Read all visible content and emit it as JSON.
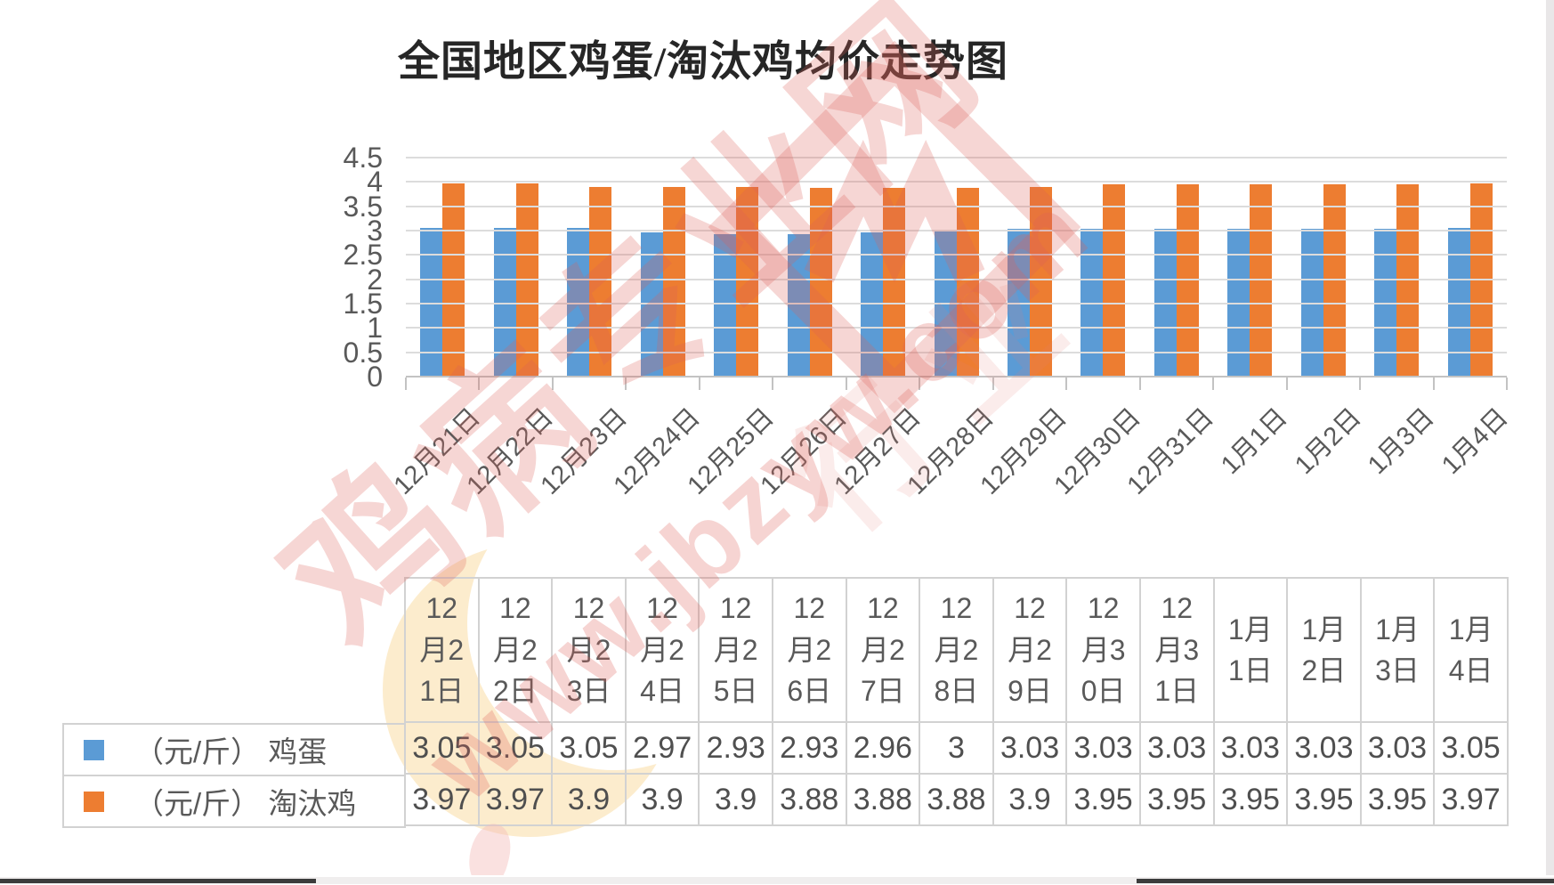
{
  "title": "全国地区鸡蛋/淘汰鸡均价走势图",
  "chart_data": {
    "type": "bar",
    "title": "全国地区鸡蛋/淘汰鸡均价走势图",
    "categories": [
      "12月21日",
      "12月22日",
      "12月23日",
      "12月24日",
      "12月25日",
      "12月26日",
      "12月27日",
      "12月28日",
      "12月29日",
      "12月30日",
      "12月31日",
      "1月1日",
      "1月2日",
      "1月3日",
      "1月4日"
    ],
    "series": [
      {
        "name": "（元/斤） 鸡蛋",
        "color": "#5B9BD5",
        "values": [
          3.05,
          3.05,
          3.05,
          2.97,
          2.93,
          2.93,
          2.96,
          3,
          3.03,
          3.03,
          3.03,
          3.03,
          3.03,
          3.03,
          3.05
        ],
        "display": [
          "3.05",
          "3.05",
          "3.05",
          "2.97",
          "2.93",
          "2.93",
          "2.96",
          "3",
          "3.03",
          "3.03",
          "3.03",
          "3.03",
          "3.03",
          "3.03",
          "3.05"
        ]
      },
      {
        "name": "（元/斤） 淘汰鸡",
        "color": "#ED7D31",
        "values": [
          3.97,
          3.97,
          3.9,
          3.9,
          3.9,
          3.88,
          3.88,
          3.88,
          3.9,
          3.95,
          3.95,
          3.95,
          3.95,
          3.95,
          3.97
        ],
        "display": [
          "3.97",
          "3.97",
          "3.9",
          "3.9",
          "3.9",
          "3.88",
          "3.88",
          "3.88",
          "3.9",
          "3.95",
          "3.95",
          "3.95",
          "3.95",
          "3.95",
          "3.97"
        ]
      }
    ],
    "ylim": [
      0,
      4.5
    ],
    "yticks": [
      "4.5",
      "4",
      "3.5",
      "3",
      "2.5",
      "2",
      "1.5",
      "1",
      "0.5",
      "0"
    ],
    "grid": true,
    "legend_position": "table-left"
  },
  "table": {
    "header_lines": [
      [
        "12",
        "月2",
        "1日"
      ],
      [
        "12",
        "月2",
        "2日"
      ],
      [
        "12",
        "月2",
        "3日"
      ],
      [
        "12",
        "月2",
        "4日"
      ],
      [
        "12",
        "月2",
        "5日"
      ],
      [
        "12",
        "月2",
        "6日"
      ],
      [
        "12",
        "月2",
        "7日"
      ],
      [
        "12",
        "月2",
        "8日"
      ],
      [
        "12",
        "月2",
        "9日"
      ],
      [
        "12",
        "月3",
        "0日"
      ],
      [
        "12",
        "月3",
        "1日"
      ],
      [
        "1月",
        "1日"
      ],
      [
        "1月",
        "2日"
      ],
      [
        "1月",
        "3日"
      ],
      [
        "1月",
        "4日"
      ]
    ]
  },
  "watermark": {
    "site_name": "鸡病专业网",
    "url": "www.jbzyw.com",
    "extra": "行业"
  }
}
